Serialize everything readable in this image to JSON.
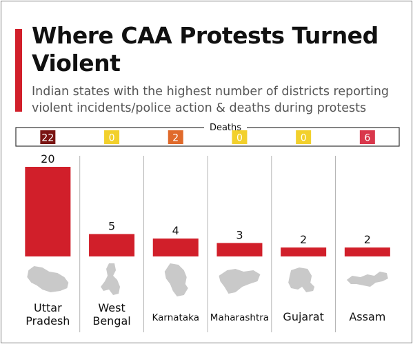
{
  "title": "Where CAA Protests Turned Violent",
  "subtitle": "Indian states with the highest number of districts reporting violent incidents/police action & deaths during protests",
  "colors": {
    "accent": "#d11f2a",
    "bar": "#d11f2a",
    "map": "#c9c9c9",
    "deaths_zero": "#f2d02c",
    "deaths_low": "#e06a2b",
    "deaths_mid": "#d9374b",
    "deaths_high": "#7a1412"
  },
  "chart_data": {
    "type": "bar",
    "title": "Where CAA Protests Turned Violent",
    "subtitle": "Indian states with the highest number of districts reporting violent incidents/police action & deaths during protests",
    "categories": [
      "Uttar Pradesh",
      "West Bengal",
      "Karnataka",
      "Maharashtra",
      "Gujarat",
      "Assam"
    ],
    "category_labels": [
      [
        "Uttar",
        "Pradesh"
      ],
      [
        "West",
        "Bengal"
      ],
      [
        "Karnataka"
      ],
      [
        "Maharashtra"
      ],
      [
        "Gujarat"
      ],
      [
        "Assam"
      ]
    ],
    "values": [
      20,
      5,
      4,
      3,
      2,
      2
    ],
    "deaths_label": "Deaths",
    "deaths": [
      22,
      0,
      2,
      0,
      0,
      6
    ],
    "ylim": [
      0,
      20
    ],
    "grid": false,
    "data_labels": true
  }
}
